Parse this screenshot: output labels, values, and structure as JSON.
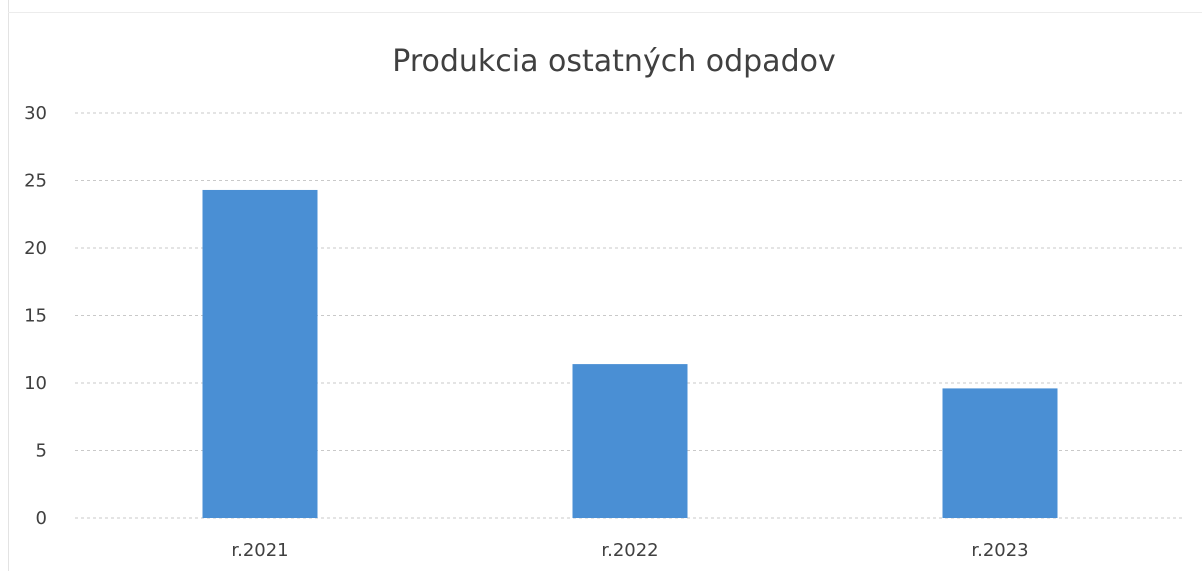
{
  "chart_data": {
    "type": "bar",
    "title": "Produkcia ostatných odpadov",
    "categories": [
      "r.2021",
      "r.2022",
      "r.2023"
    ],
    "values": [
      24.3,
      11.4,
      9.6
    ],
    "xlabel": "",
    "ylabel": "",
    "ylim": [
      0,
      30
    ],
    "yticks": [
      0,
      5,
      10,
      15,
      20,
      25,
      30
    ],
    "grid": true,
    "legend": "none",
    "bar_color": "#4a8fd4"
  }
}
